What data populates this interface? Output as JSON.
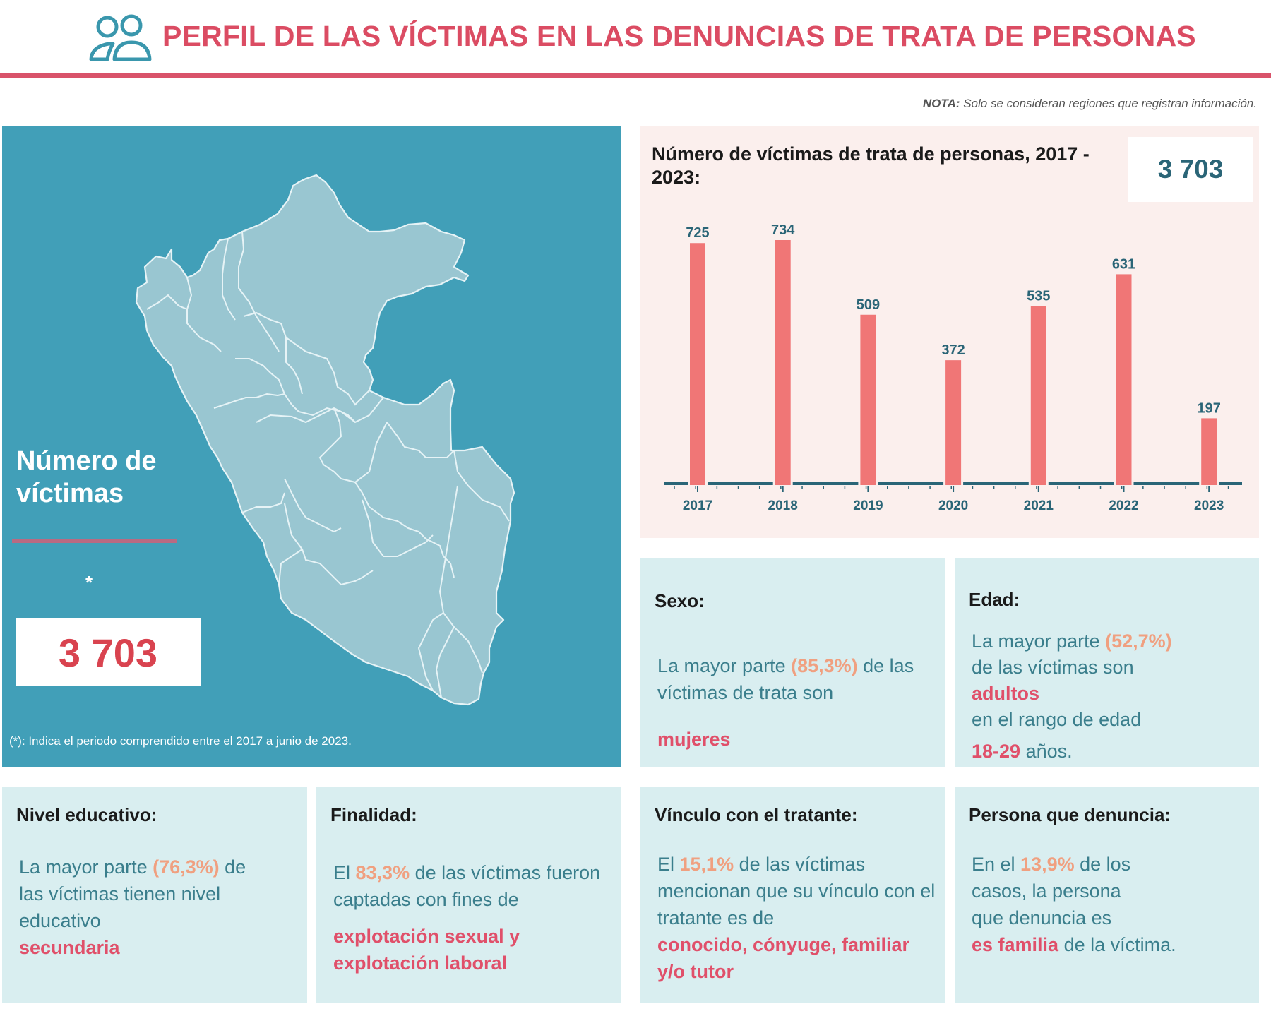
{
  "header": {
    "icon": "users-icon",
    "title": "PERFIL DE LAS VÍCTIMAS EN LAS DENUNCIAS DE TRATA DE PERSONAS"
  },
  "note": {
    "label": "NOTA:",
    "text": " Solo se consideran regiones que registran información."
  },
  "map_panel": {
    "title_line1": "Número de",
    "title_line2": "víctimas",
    "asterisk": "*",
    "total": "3 703",
    "footnote": "(*): Indica el periodo comprendido entre el 2017 a junio de 2023."
  },
  "colors": {
    "brand_red": "#db4c63",
    "teal": "#419fb8",
    "bar": "#f07676",
    "axis": "#2a6577",
    "card_bg": "#d9eef0",
    "chart_bg": "#fbefed",
    "percent": "#f0a080",
    "highlight": "#e0506a"
  },
  "chart_data": {
    "type": "bar",
    "title": "Número de víctimas de trata de personas, 2017 - 2023:",
    "total_label": "3 703",
    "categories": [
      "2017",
      "2018",
      "2019",
      "2020",
      "2021",
      "2022",
      "2023"
    ],
    "values": [
      725,
      734,
      509,
      372,
      535,
      631,
      197
    ],
    "xlabel": "",
    "ylabel": "",
    "ylim": [
      0,
      734
    ],
    "grid": false,
    "legend": "none"
  },
  "cards": {
    "sexo": {
      "title": "Sexo:",
      "t1": "La mayor parte ",
      "pct": "(85,3%)",
      "t2": " de las víctimas de trata son",
      "hl": "mujeres"
    },
    "edad": {
      "title": "Edad:",
      "t1": "La mayor parte ",
      "pct": "(52,7%)",
      "t2": "de las víctimas son",
      "hl": "adultos",
      "t3": "en el rango de edad",
      "hl2": "18-29",
      "t4": " años."
    },
    "educacion": {
      "title": "Nivel educativo:",
      "t1": "La mayor parte ",
      "pct": "(76,3%)",
      "t2": "de las víctimas tienen nivel educativo",
      "hl": "secundaria"
    },
    "finalidad": {
      "title": "Finalidad:",
      "t1": "El ",
      "pct": "83,3%",
      "t2": " de las víctimas fueron captadas con fines de",
      "hl": "explotación sexual y explotación laboral"
    },
    "vinculo": {
      "title": "Vínculo con el tratante:",
      "t1": "El ",
      "pct": "15,1%",
      "t2": " de las víctimas mencionan que su vínculo con el tratante es de",
      "hl": "conocido, cónyuge, familiar y/o tutor"
    },
    "denuncia": {
      "title": "Persona que denuncia:",
      "t1": "En el ",
      "pct": "13,9%",
      "t2": " de los casos, la persona que denuncia es",
      "hl": "es familia",
      "t3": " de la víctima."
    }
  }
}
